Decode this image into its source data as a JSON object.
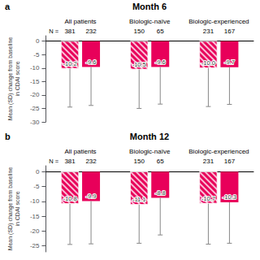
{
  "chart_data": [
    {
      "type": "bar",
      "title": "Month 6",
      "panel_label": "a",
      "n_label": "N =",
      "ylabel": "Mean (SD) change from baseline\nin CDAI score",
      "categories": [
        "All patients",
        "Biologic-naïve",
        "Biologic-experienced"
      ],
      "series": [
        {
          "color": "#e8005a",
          "values": [
            -10.2,
            -10.5,
            -10.0
          ],
          "value_labels": [
            "-10.2",
            "-10.5",
            "-10.0"
          ],
          "errors_down": [
            14.3,
            14.5,
            14.3
          ],
          "n": [
            381,
            150,
            231
          ]
        },
        {
          "color": "#e8005a",
          "values": [
            -9.6,
            -9.6,
            -9.7
          ],
          "value_labels": [
            "-9.6",
            "-9.6",
            "-9.7"
          ],
          "errors_down": [
            14.3,
            13.8,
            13.8
          ],
          "n": [
            232,
            65,
            167
          ]
        }
      ],
      "ylim": [
        -30,
        2
      ],
      "yticks": [
        0,
        -5,
        -10,
        -15,
        -20,
        -25,
        -30
      ],
      "grid": false,
      "data_labels": true
    },
    {
      "type": "bar",
      "title": "Month 12",
      "panel_label": "b",
      "n_label": "N =",
      "ylabel": "Mean (SD) change from baseline\nin CDAI score",
      "categories": [
        "All patients",
        "Biologic-naïve",
        "Biologic-experienced"
      ],
      "series": [
        {
          "color": "#e8005a",
          "values": [
            -10.8,
            -11.1,
            -10.7
          ],
          "value_labels": [
            "-10.8",
            "-11.1",
            "-10.7"
          ],
          "errors_down": [
            13.7,
            13.0,
            13.7
          ],
          "n": [
            381,
            150,
            231
          ]
        },
        {
          "color": "#e8005a",
          "values": [
            -9.9,
            -8.8,
            -10.3
          ],
          "value_labels": [
            "-9.9",
            "-8.8",
            "-10.3"
          ],
          "errors_down": [
            14.4,
            12.5,
            13.8
          ],
          "n": [
            232,
            65,
            167
          ]
        }
      ],
      "ylim": [
        -27,
        2
      ],
      "yticks": [
        0,
        -5,
        -10,
        -15,
        -20,
        -25
      ],
      "grid": false,
      "data_labels": true
    }
  ]
}
